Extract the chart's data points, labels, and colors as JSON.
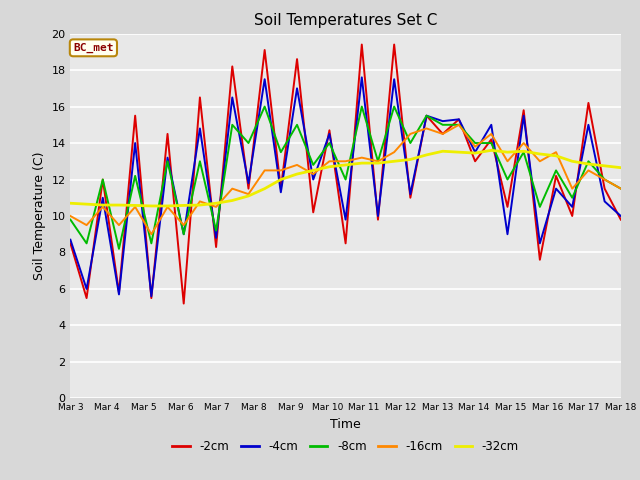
{
  "title": "Soil Temperatures Set C",
  "xlabel": "Time",
  "ylabel": "Soil Temperature (C)",
  "ylim": [
    0,
    20
  ],
  "bg_color": "#d8d8d8",
  "plot_bg_color": "#e8e8e8",
  "annotation_label": "BC_met",
  "annotation_color": "#8b0000",
  "annotation_bg": "#fffff0",
  "annotation_edge": "#b8860b",
  "x_tick_labels": [
    "Mar 3",
    "Mar 4",
    "Mar 5",
    "Mar 6",
    "Mar 7",
    "Mar 8",
    "Mar 9",
    "Mar 10",
    "Mar 11",
    "Mar 12",
    "Mar 13",
    "Mar 14",
    "Mar 15",
    "Mar 16",
    "Mar 17",
    "Mar 18"
  ],
  "series": {
    "-2cm": {
      "color": "#dd0000",
      "linewidth": 1.4,
      "values": [
        8.5,
        5.5,
        12.0,
        5.8,
        15.5,
        5.5,
        14.5,
        5.2,
        16.5,
        8.3,
        18.2,
        11.5,
        19.1,
        11.5,
        18.6,
        10.2,
        14.7,
        8.5,
        19.4,
        9.8,
        19.4,
        11.0,
        15.5,
        14.5,
        15.3,
        13.0,
        14.2,
        10.5,
        15.8,
        7.6,
        12.2,
        10.0,
        16.2,
        11.5,
        9.8
      ]
    },
    "-4cm": {
      "color": "#0000cc",
      "linewidth": 1.4,
      "values": [
        8.7,
        6.0,
        11.0,
        5.7,
        14.0,
        5.6,
        13.2,
        9.0,
        14.8,
        8.8,
        16.5,
        11.8,
        17.5,
        11.3,
        17.0,
        12.0,
        14.5,
        9.8,
        17.6,
        10.0,
        17.5,
        11.2,
        15.5,
        15.2,
        15.3,
        13.5,
        15.0,
        9.0,
        15.5,
        8.5,
        11.5,
        10.5,
        15.0,
        10.8,
        10.0
      ]
    },
    "-8cm": {
      "color": "#00bb00",
      "linewidth": 1.4,
      "values": [
        9.8,
        8.5,
        12.0,
        8.2,
        12.2,
        8.5,
        13.0,
        9.0,
        13.0,
        9.2,
        15.0,
        14.0,
        16.0,
        13.5,
        15.0,
        12.8,
        14.0,
        12.0,
        16.0,
        13.0,
        16.0,
        14.0,
        15.5,
        15.0,
        15.0,
        14.0,
        14.0,
        12.0,
        13.5,
        10.5,
        12.5,
        11.0,
        13.0,
        12.0,
        11.5
      ]
    },
    "-16cm": {
      "color": "#ff8800",
      "linewidth": 1.4,
      "values": [
        10.0,
        9.5,
        10.5,
        9.5,
        10.5,
        9.0,
        10.5,
        9.5,
        10.8,
        10.5,
        11.5,
        11.2,
        12.5,
        12.5,
        12.8,
        12.3,
        13.0,
        13.0,
        13.2,
        13.0,
        13.5,
        14.5,
        14.8,
        14.5,
        15.0,
        13.8,
        14.5,
        13.0,
        14.0,
        13.0,
        13.5,
        11.5,
        12.5,
        12.0,
        11.5
      ]
    },
    "-32cm": {
      "color": "#eeee00",
      "linewidth": 2.0,
      "values": [
        10.7,
        10.65,
        10.6,
        10.6,
        10.58,
        10.55,
        10.55,
        10.58,
        10.6,
        10.7,
        10.85,
        11.1,
        11.5,
        12.0,
        12.3,
        12.5,
        12.7,
        12.8,
        12.9,
        12.9,
        13.0,
        13.1,
        13.35,
        13.55,
        13.5,
        13.45,
        13.6,
        13.5,
        13.55,
        13.4,
        13.3,
        13.0,
        12.85,
        12.75,
        12.65
      ]
    }
  }
}
